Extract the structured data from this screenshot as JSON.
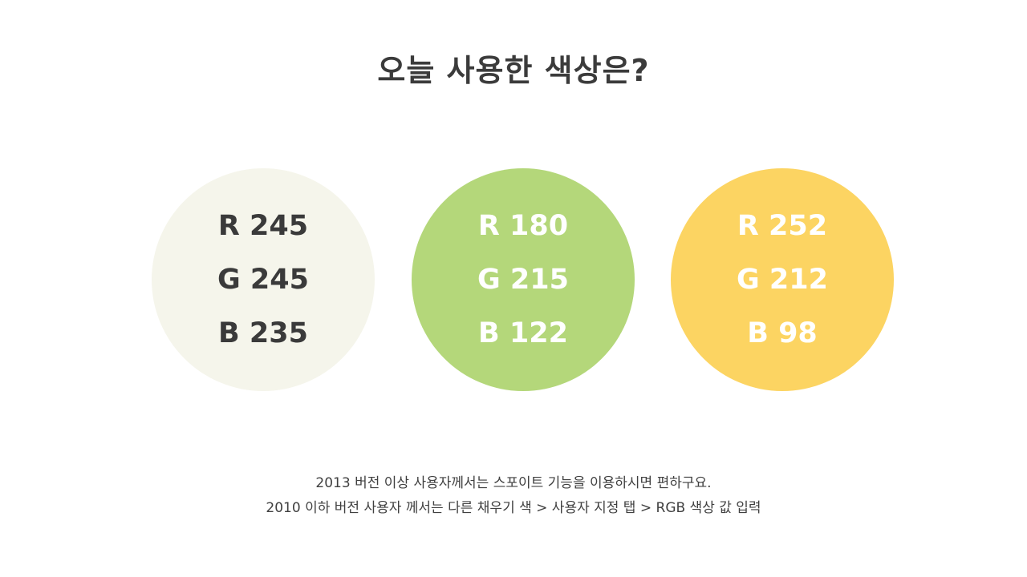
{
  "title": "오늘 사용한 색상은?",
  "swatches": [
    {
      "fill": "#F5F5EB",
      "text_color": "#3a3a3a",
      "r": "R 245",
      "g": "G 245",
      "b": "B 235"
    },
    {
      "fill": "#B4D77A",
      "text_color": "#ffffff",
      "r": "R 180",
      "g": "G 215",
      "b": "B 122"
    },
    {
      "fill": "#FCD462",
      "text_color": "#ffffff",
      "r": "R 252",
      "g": "G 212",
      "b": "B 98"
    }
  ],
  "notes": [
    "2013 버전 이상 사용자께서는 스포이트 기능을 이용하시면 편하구요.",
    "2010 이하 버전 사용자 께서는 다른 채우기 색 > 사용자 지정 탭 > RGB 색상 값 입력"
  ]
}
